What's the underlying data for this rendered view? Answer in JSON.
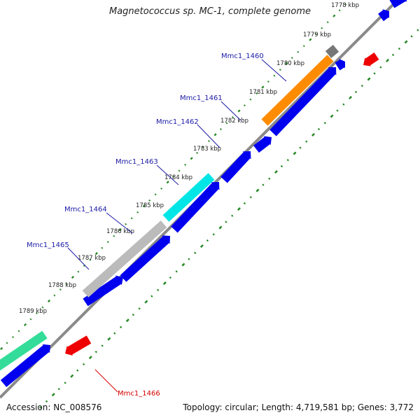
{
  "title": "Magnetococcus sp. MC-1, complete genome",
  "footer": {
    "accession": "Accession: NC_008576",
    "summary": "Topology: circular; Length: 4,719,581 bp; Genes: 3,772"
  },
  "ruler": {
    "ticks": [
      "1778 kbp",
      "1779 kbp",
      "1780 kbp",
      "1781 kbp",
      "1782 kbp",
      "1783 kbp",
      "1784 kbp",
      "1785 kbp",
      "1786 kbp",
      "1787 kbp",
      "1788 kbp",
      "1789 kbp"
    ]
  },
  "genes": [
    {
      "label": "Mmc1_1460",
      "label_color": "#1a1aa6"
    },
    {
      "label": "Mmc1_1461",
      "label_color": "#1a1aa6"
    },
    {
      "label": "Mmc1_1462",
      "label_color": "#1a1aa6"
    },
    {
      "label": "Mmc1_1463",
      "label_color": "#1a1aa6"
    },
    {
      "label": "Mmc1_1464",
      "label_color": "#1a1aa6"
    },
    {
      "label": "Mmc1_1465",
      "label_color": "#1a1aa6"
    },
    {
      "label": "Mmc1_1466",
      "label_color": "#d40000"
    }
  ],
  "colors": {
    "backbone": "#8a8a8a",
    "cds": "#0000ee",
    "reverse_feature": "#ee0000",
    "tick_dots": "#2a8a2a",
    "gene_1460": "#ff8c00",
    "gene_1460_cap": "#777777",
    "gene_1463": "#00e5e5",
    "gene_1464": "#bbbbbb",
    "gene_1466_region": "#33dd99"
  }
}
